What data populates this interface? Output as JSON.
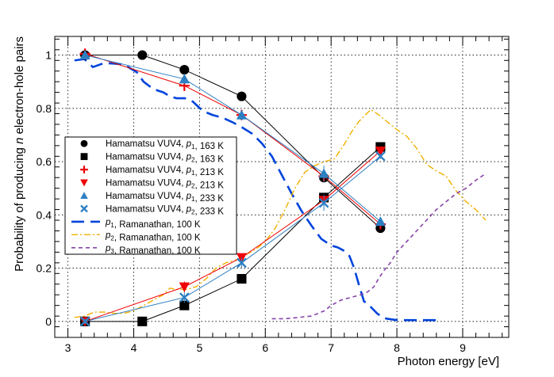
{
  "chart_data": {
    "type": "scatter",
    "xlabel": "Photon energy [eV]",
    "ylabel_parts": [
      "Probability of producing ",
      "n",
      " electron-hole pairs"
    ],
    "xlim": [
      2.8,
      9.7
    ],
    "ylim": [
      -0.06,
      1.07
    ],
    "xticks": [
      3,
      4,
      5,
      6,
      7,
      8,
      9
    ],
    "yticks": [
      0,
      0.2,
      0.4,
      0.6,
      0.8,
      1
    ],
    "xtick_labels": [
      "3",
      "4",
      "5",
      "6",
      "7",
      "8",
      "9"
    ],
    "ytick_labels": [
      "0",
      "0.2",
      "0.4",
      "0.6",
      "0.8",
      "1"
    ],
    "grid": true,
    "legend_position": "left",
    "marker_series": [
      {
        "name": "Hamamatsu VUV4, p1, 163 K",
        "legend": {
          "pre": "Hamamatsu VUV4, ",
          "sym": "p",
          "sub": "1",
          "post": ", 163 K"
        },
        "marker": "circle",
        "color": "#000000",
        "x": [
          3.26,
          4.13,
          4.77,
          5.64,
          6.89,
          7.75
        ],
        "y": [
          1.0,
          1.0,
          0.945,
          0.845,
          0.54,
          0.35
        ],
        "yerr": [
          0.01,
          0.0,
          0.008,
          0.008,
          0.012,
          0.006
        ]
      },
      {
        "name": "Hamamatsu VUV4, p2, 163 K",
        "legend": {
          "pre": "Hamamatsu VUV4, ",
          "sym": "p",
          "sub": "2",
          "post": ", 163 K"
        },
        "marker": "square",
        "color": "#000000",
        "x": [
          3.26,
          4.13,
          4.77,
          5.64,
          6.89,
          7.75
        ],
        "y": [
          0.0,
          0.0,
          0.06,
          0.16,
          0.465,
          0.655
        ],
        "yerr": [
          0.0,
          0.0,
          0.006,
          0.006,
          0.012,
          0.006
        ]
      },
      {
        "name": "Hamamatsu VUV4, p1, 213 K",
        "legend": {
          "pre": "Hamamatsu VUV4, ",
          "sym": "p",
          "sub": "1",
          "post": ", 213 K"
        },
        "marker": "plus",
        "color": "#ee0000",
        "x": [
          3.26,
          4.77,
          5.64,
          6.89,
          7.75
        ],
        "y": [
          1.005,
          0.885,
          0.775,
          0.545,
          0.365
        ],
        "yerr": [
          0.015,
          0.02,
          0.012,
          0.015,
          0.008
        ]
      },
      {
        "name": "Hamamatsu VUV4, p2, 213 K",
        "legend": {
          "pre": "Hamamatsu VUV4, ",
          "sym": "p",
          "sub": "2",
          "post": ", 213 K"
        },
        "marker": "triangle-down",
        "color": "#ee0000",
        "x": [
          3.26,
          4.77,
          5.64,
          6.89,
          7.75
        ],
        "y": [
          0.0,
          0.13,
          0.24,
          0.455,
          0.64
        ],
        "yerr": [
          0.005,
          0.02,
          0.012,
          0.015,
          0.008
        ]
      },
      {
        "name": "Hamamatsu VUV4, p1, 233 K",
        "legend": {
          "pre": "Hamamatsu VUV4, ",
          "sym": "p",
          "sub": "1",
          "post": ", 233 K"
        },
        "marker": "triangle-up",
        "color": "#2e7fc2",
        "x": [
          3.26,
          4.77,
          5.64,
          6.89,
          7.75
        ],
        "y": [
          1.0,
          0.91,
          0.775,
          0.555,
          0.375
        ],
        "yerr": [
          0.01,
          0.02,
          0.02,
          0.03,
          0.01
        ]
      },
      {
        "name": "Hamamatsu VUV4, p2, 233 K",
        "legend": {
          "pre": "Hamamatsu VUV4, ",
          "sym": "p",
          "sub": "2",
          "post": ", 233 K"
        },
        "marker": "x",
        "color": "#2e7fc2",
        "x": [
          3.26,
          4.77,
          5.64,
          6.89,
          7.75
        ],
        "y": [
          0.0,
          0.09,
          0.22,
          0.445,
          0.62
        ],
        "yerr": [
          0.01,
          0.02,
          0.02,
          0.03,
          0.01
        ]
      }
    ],
    "curve_series": [
      {
        "name": "p1, Ramanathan, 100 K",
        "legend": {
          "pre": "",
          "sym": "p",
          "sub": "1",
          "post": ", Ramanathan, 100 K"
        },
        "color": "#0044dd",
        "style": "long-dash",
        "x": [
          3.1,
          3.25,
          3.38,
          3.55,
          3.7,
          3.85,
          3.95,
          4.05,
          4.15,
          4.3,
          4.45,
          4.55,
          4.65,
          4.78,
          4.9,
          5.05,
          5.2,
          5.35,
          5.5,
          5.65,
          5.8,
          5.95,
          6.1,
          6.25,
          6.4,
          6.55,
          6.7,
          6.85,
          7.0,
          7.1,
          7.2,
          7.28,
          7.35,
          7.42,
          7.5,
          7.55,
          7.62,
          7.7,
          7.78,
          7.85,
          8.0,
          8.2,
          8.4,
          8.6
        ],
        "y": [
          0.98,
          0.985,
          0.955,
          0.97,
          0.968,
          0.965,
          0.95,
          0.935,
          0.9,
          0.872,
          0.86,
          0.845,
          0.838,
          0.838,
          0.825,
          0.79,
          0.775,
          0.765,
          0.748,
          0.728,
          0.705,
          0.668,
          0.62,
          0.55,
          0.48,
          0.415,
          0.36,
          0.31,
          0.285,
          0.278,
          0.265,
          0.245,
          0.2,
          0.14,
          0.075,
          0.068,
          0.05,
          0.03,
          0.015,
          0.01,
          0.005,
          0.005,
          0.005,
          0.005
        ]
      },
      {
        "name": "p2, Ramanathan, 100 K",
        "legend": {
          "pre": "",
          "sym": "p",
          "sub": "2",
          "post": ", Ramanathan, 100 K"
        },
        "color": "#f0b000",
        "style": "dash-dot",
        "x": [
          3.1,
          3.25,
          3.4,
          3.55,
          3.7,
          3.85,
          4.0,
          4.15,
          4.3,
          4.45,
          4.55,
          4.65,
          4.8,
          4.95,
          5.1,
          5.25,
          5.4,
          5.55,
          5.7,
          5.85,
          6.0,
          6.15,
          6.3,
          6.45,
          6.6,
          6.75,
          6.9,
          7.05,
          7.2,
          7.32,
          7.42,
          7.52,
          7.6,
          7.7,
          7.85,
          8.0,
          8.15,
          8.3,
          8.45,
          8.6,
          8.75,
          8.9,
          9.05,
          9.2,
          9.35
        ],
        "y": [
          0.015,
          0.02,
          0.035,
          0.035,
          0.03,
          0.03,
          0.04,
          0.06,
          0.08,
          0.1,
          0.125,
          0.12,
          0.12,
          0.13,
          0.16,
          0.2,
          0.22,
          0.23,
          0.25,
          0.27,
          0.3,
          0.35,
          0.42,
          0.5,
          0.56,
          0.585,
          0.6,
          0.61,
          0.665,
          0.715,
          0.75,
          0.775,
          0.795,
          0.78,
          0.75,
          0.72,
          0.695,
          0.65,
          0.59,
          0.565,
          0.545,
          0.49,
          0.45,
          0.42,
          0.38
        ]
      },
      {
        "name": "p3, Ramanathan, 100 K",
        "legend": {
          "pre": "",
          "sym": "p",
          "sub": "3",
          "post": ", Ramanathan, 100 K"
        },
        "color": "#8844aa",
        "style": "short-dash",
        "x": [
          6.1,
          6.3,
          6.5,
          6.7,
          6.8,
          6.9,
          7.0,
          7.15,
          7.3,
          7.45,
          7.55,
          7.65,
          7.72,
          7.8,
          7.9,
          8.0,
          8.15,
          8.3,
          8.45,
          8.6,
          8.75,
          8.9,
          9.05,
          9.2,
          9.35
        ],
        "y": [
          0.01,
          0.01,
          0.015,
          0.02,
          0.03,
          0.04,
          0.06,
          0.08,
          0.09,
          0.1,
          0.11,
          0.13,
          0.16,
          0.19,
          0.22,
          0.26,
          0.3,
          0.34,
          0.38,
          0.42,
          0.45,
          0.48,
          0.5,
          0.53,
          0.555
        ]
      }
    ]
  }
}
